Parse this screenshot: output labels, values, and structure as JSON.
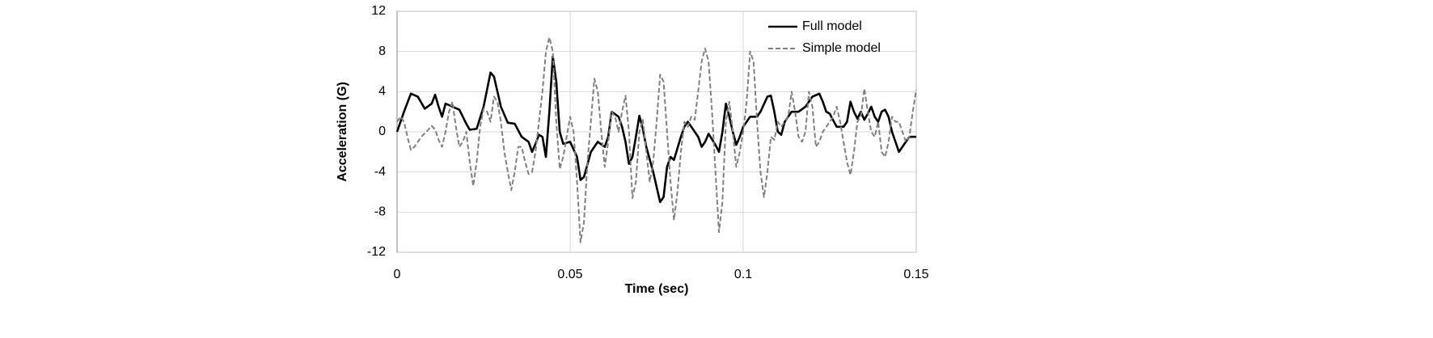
{
  "chart_data": {
    "type": "line",
    "xlabel": "Time (sec)",
    "ylabel": "Acceleration (G)",
    "xlim": [
      0,
      0.15
    ],
    "xticks": [
      0,
      0.05,
      0.1,
      0.15
    ],
    "ylim": [
      -12,
      12
    ],
    "yticks": [
      -12,
      -8,
      -4,
      0,
      4,
      8,
      12
    ],
    "grid": true,
    "legend": "upper right",
    "series": [
      {
        "name": "Full model",
        "color": "#000000",
        "style": "solid",
        "x": [
          0,
          0.002,
          0.004,
          0.006,
          0.008,
          0.01,
          0.011,
          0.012,
          0.013,
          0.014,
          0.016,
          0.018,
          0.02,
          0.021,
          0.023,
          0.025,
          0.027,
          0.028,
          0.03,
          0.032,
          0.034,
          0.036,
          0.038,
          0.039,
          0.04,
          0.041,
          0.042,
          0.043,
          0.044,
          0.045,
          0.046,
          0.047,
          0.048,
          0.05,
          0.052,
          0.053,
          0.054,
          0.056,
          0.058,
          0.06,
          0.061,
          0.062,
          0.064,
          0.065,
          0.066,
          0.067,
          0.068,
          0.069,
          0.07,
          0.071,
          0.072,
          0.074,
          0.076,
          0.077,
          0.078,
          0.079,
          0.08,
          0.082,
          0.083,
          0.084,
          0.085,
          0.087,
          0.088,
          0.089,
          0.09,
          0.092,
          0.093,
          0.094,
          0.095,
          0.096,
          0.097,
          0.098,
          0.099,
          0.1,
          0.102,
          0.104,
          0.105,
          0.107,
          0.108,
          0.109,
          0.11,
          0.111,
          0.112,
          0.114,
          0.116,
          0.118,
          0.12,
          0.122,
          0.123,
          0.124,
          0.125,
          0.127,
          0.128,
          0.129,
          0.13,
          0.131,
          0.132,
          0.133,
          0.134,
          0.135,
          0.136,
          0.137,
          0.138,
          0.139,
          0.14,
          0.141,
          0.142,
          0.143,
          0.145,
          0.146,
          0.147,
          0.148,
          0.15
        ],
        "values": [
          0,
          2,
          3.8,
          3.5,
          2.3,
          2.8,
          3.7,
          2.5,
          1.5,
          2.8,
          2.5,
          2.2,
          0.8,
          0.2,
          0.3,
          2.5,
          5.9,
          5.5,
          2.5,
          0.9,
          0.8,
          -0.5,
          -1,
          -2,
          -1.2,
          -0.3,
          -0.5,
          -2.5,
          2,
          7.5,
          5,
          0,
          -1.2,
          -1,
          -2.5,
          -4.8,
          -4.5,
          -2,
          -1,
          -1.5,
          -0.5,
          2,
          1.5,
          0.5,
          -1,
          -3.2,
          -2.5,
          -0.5,
          1.6,
          0.3,
          -1.5,
          -4,
          -7,
          -6.5,
          -3.5,
          -2.5,
          -2.8,
          -0.5,
          0.5,
          1,
          0.5,
          -0.5,
          -1.5,
          -1,
          -0.2,
          -1.3,
          -2,
          0,
          2.8,
          1.5,
          0,
          -1.3,
          -0.5,
          0.5,
          1.5,
          1.5,
          2,
          3.5,
          3.6,
          2,
          0,
          -0.3,
          1,
          2,
          2,
          2.5,
          3.5,
          3.8,
          3,
          2,
          1.8,
          0.5,
          0.5,
          0.5,
          1,
          3,
          2,
          1.3,
          2,
          1.2,
          1.8,
          2.5,
          1.5,
          1,
          2,
          2.2,
          1.5,
          0,
          -2,
          -1.5,
          -1,
          -0.5,
          -0.5
        ]
      },
      {
        "name": "Simple model",
        "color": "#808080",
        "style": "dashed",
        "x": [
          0,
          0.001,
          0.002,
          0.003,
          0.004,
          0.005,
          0.007,
          0.009,
          0.01,
          0.011,
          0.012,
          0.013,
          0.014,
          0.015,
          0.016,
          0.017,
          0.018,
          0.019,
          0.02,
          0.021,
          0.022,
          0.023,
          0.024,
          0.025,
          0.026,
          0.027,
          0.028,
          0.029,
          0.03,
          0.031,
          0.032,
          0.033,
          0.034,
          0.035,
          0.036,
          0.037,
          0.038,
          0.039,
          0.04,
          0.041,
          0.042,
          0.043,
          0.044,
          0.045,
          0.046,
          0.047,
          0.048,
          0.049,
          0.05,
          0.051,
          0.052,
          0.053,
          0.054,
          0.055,
          0.056,
          0.057,
          0.058,
          0.059,
          0.06,
          0.061,
          0.062,
          0.063,
          0.064,
          0.065,
          0.066,
          0.067,
          0.068,
          0.069,
          0.07,
          0.071,
          0.072,
          0.073,
          0.074,
          0.075,
          0.076,
          0.077,
          0.078,
          0.079,
          0.08,
          0.081,
          0.082,
          0.083,
          0.084,
          0.085,
          0.086,
          0.087,
          0.088,
          0.089,
          0.09,
          0.091,
          0.092,
          0.093,
          0.094,
          0.095,
          0.096,
          0.097,
          0.098,
          0.099,
          0.1,
          0.101,
          0.102,
          0.103,
          0.104,
          0.105,
          0.106,
          0.107,
          0.108,
          0.109,
          0.11,
          0.111,
          0.112,
          0.113,
          0.114,
          0.115,
          0.116,
          0.117,
          0.118,
          0.119,
          0.12,
          0.121,
          0.122,
          0.123,
          0.124,
          0.125,
          0.126,
          0.127,
          0.128,
          0.129,
          0.13,
          0.131,
          0.132,
          0.133,
          0.134,
          0.135,
          0.136,
          0.137,
          0.138,
          0.139,
          0.14,
          0.141,
          0.142,
          0.143,
          0.144,
          0.145,
          0.146,
          0.147,
          0.148,
          0.149,
          0.15
        ],
        "values": [
          1,
          1.5,
          1,
          -0.5,
          -1.8,
          -1.5,
          -0.5,
          0.2,
          0.6,
          0.2,
          -0.8,
          -1.5,
          0,
          2,
          3,
          0.5,
          -1.5,
          -1,
          0,
          -3,
          -5.4,
          -3,
          0.5,
          2.3,
          2,
          1,
          3.5,
          3,
          1,
          -2,
          -4,
          -5.8,
          -4,
          -1.5,
          -1.5,
          -3,
          -4.2,
          -4,
          -2,
          1,
          4,
          8,
          9.4,
          8,
          1,
          -3.7,
          -2.5,
          -0.5,
          1.5,
          0,
          -5,
          -11,
          -9,
          -3,
          1,
          5.3,
          4,
          0,
          -3.5,
          -1,
          2,
          1.5,
          0,
          2,
          3.6,
          0,
          -6.6,
          -5,
          0,
          1.2,
          -2,
          -5,
          -3,
          1,
          5.7,
          5,
          0,
          -5,
          -8.8,
          -6,
          -2,
          1,
          0.5,
          1.5,
          1.2,
          4,
          7,
          8.3,
          7,
          2,
          -4,
          -10,
          -7,
          1,
          3,
          0,
          -3.5,
          -2,
          0,
          3,
          8,
          7,
          1,
          -4,
          -6.5,
          -4,
          -0.5,
          -0.8,
          1,
          0.5,
          1,
          1.5,
          4,
          2,
          -0.5,
          -1,
          0,
          4,
          2.5,
          -1.5,
          -1,
          0,
          0.5,
          1,
          1.5,
          2.5,
          1,
          -1,
          -3,
          -4.3,
          -2,
          1,
          1.5,
          4.3,
          2,
          0,
          -0.5,
          1,
          -2,
          -2.5,
          -1,
          1.5,
          1,
          1,
          0,
          -1,
          -0.5,
          2,
          4.2
        ]
      }
    ]
  }
}
